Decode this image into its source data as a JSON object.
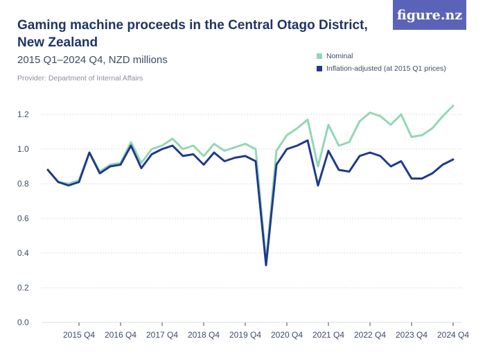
{
  "header": {
    "title": "Gaming machine proceeds in the Central Otago District, New Zealand",
    "subtitle": "2015 Q1–2024 Q4, NZD millions",
    "provider": "Provider: Department of Internal Affairs",
    "logo": "figure.nz"
  },
  "colors": {
    "nominal": "#93d6b5",
    "adjusted": "#1f3a8c",
    "logo_bg": "#5b63b8",
    "grid": "#d9dce3"
  },
  "chart_data": {
    "type": "line",
    "title": "Gaming machine proceeds in the Central Otago District, New Zealand",
    "subtitle": "2015 Q1–2024 Q4, NZD millions",
    "x": [
      "2015 Q1",
      "2015 Q2",
      "2015 Q3",
      "2015 Q4",
      "2016 Q1",
      "2016 Q2",
      "2016 Q3",
      "2016 Q4",
      "2017 Q1",
      "2017 Q2",
      "2017 Q3",
      "2017 Q4",
      "2018 Q1",
      "2018 Q2",
      "2018 Q3",
      "2018 Q4",
      "2019 Q1",
      "2019 Q2",
      "2019 Q3",
      "2019 Q4",
      "2020 Q1",
      "2020 Q2",
      "2020 Q3",
      "2020 Q4",
      "2021 Q1",
      "2021 Q2",
      "2021 Q3",
      "2021 Q4",
      "2022 Q1",
      "2022 Q2",
      "2022 Q3",
      "2022 Q4",
      "2023 Q1",
      "2023 Q2",
      "2023 Q3",
      "2023 Q4",
      "2024 Q1",
      "2024 Q2",
      "2024 Q3",
      "2024 Q4"
    ],
    "x_tick_labels": [
      "2015 Q4",
      "2016 Q4",
      "2017 Q4",
      "2018 Q4",
      "2019 Q4",
      "2020 Q4",
      "2021 Q4",
      "2022 Q4",
      "2023 Q4",
      "2024 Q4"
    ],
    "series": [
      {
        "name": "Nominal",
        "values": [
          0.88,
          0.81,
          0.8,
          0.82,
          0.98,
          0.87,
          0.91,
          0.92,
          1.04,
          0.92,
          1.0,
          1.02,
          1.06,
          1.0,
          1.02,
          0.96,
          1.03,
          0.99,
          1.01,
          1.03,
          1.0,
          0.35,
          0.99,
          1.08,
          1.12,
          1.17,
          0.9,
          1.14,
          1.02,
          1.04,
          1.16,
          1.21,
          1.19,
          1.14,
          1.2,
          1.07,
          1.08,
          1.12,
          1.19,
          1.25
        ]
      },
      {
        "name": "Inflation-adjusted (at 2015 Q1 prices)",
        "values": [
          0.88,
          0.81,
          0.79,
          0.81,
          0.98,
          0.86,
          0.9,
          0.91,
          1.02,
          0.89,
          0.97,
          1.0,
          1.02,
          0.96,
          0.97,
          0.91,
          0.98,
          0.93,
          0.95,
          0.96,
          0.93,
          0.33,
          0.91,
          1.0,
          1.02,
          1.05,
          0.79,
          0.99,
          0.88,
          0.87,
          0.96,
          0.98,
          0.96,
          0.9,
          0.93,
          0.83,
          0.83,
          0.86,
          0.91,
          0.94
        ]
      }
    ],
    "ylim": [
      0,
      1.3
    ],
    "yticks": [
      "0.0",
      "0.2",
      "0.4",
      "0.6",
      "0.8",
      "1.0",
      "1.2"
    ],
    "grid": "horizontal",
    "legend": "top-right"
  }
}
